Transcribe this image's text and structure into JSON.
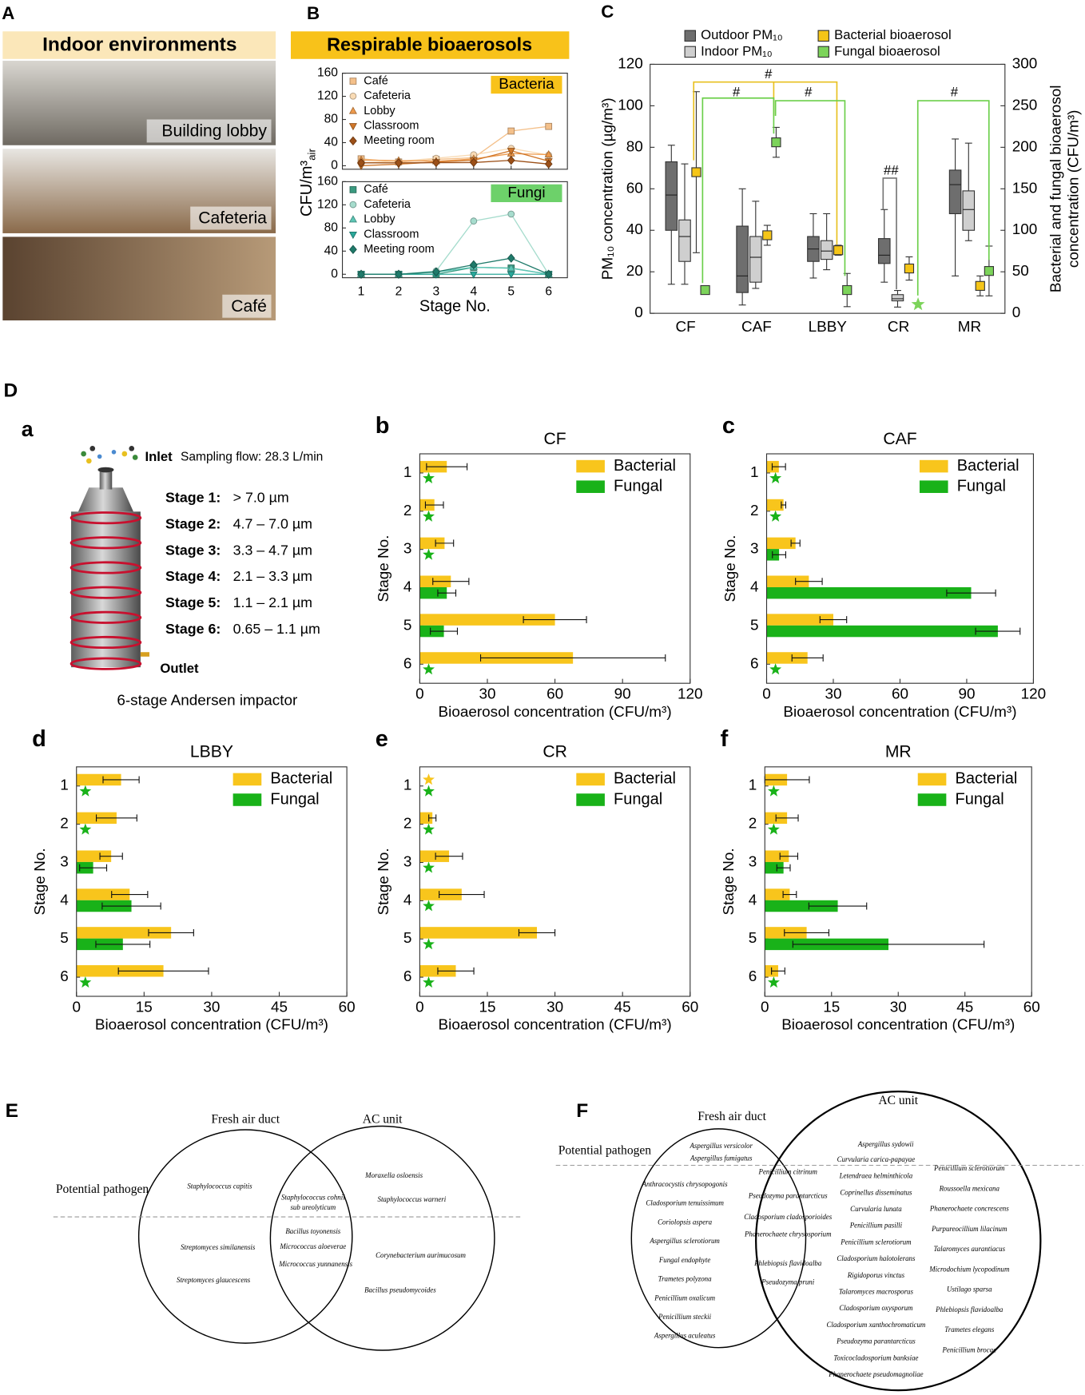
{
  "panel_a": {
    "panel": "A",
    "title": "Indoor environments",
    "photos": [
      "Building lobby",
      "Cafeteria",
      "Café"
    ]
  },
  "panel_b": {
    "panel": "B",
    "title": "Respirable bioaerosols"
  },
  "chart_data": [
    {
      "type": "line",
      "tag": "Bacteria",
      "tag_color": "#f8c21a",
      "ylabel": "CFU/m³",
      "ylabel_sub": "air",
      "x": [
        1,
        2,
        3,
        4,
        5,
        6
      ],
      "xlim": [
        0.5,
        6.5
      ],
      "xticks": [
        1,
        2,
        3,
        4,
        5,
        6
      ],
      "ylim": [
        -6,
        160
      ],
      "yticks": [
        0,
        40,
        80,
        120,
        160
      ],
      "series": [
        {
          "name": "Café",
          "color": "#f4c08a",
          "marker": "square",
          "values": [
            12,
            6.5,
            11,
            13.8,
            60,
            68
          ]
        },
        {
          "name": "Cafeteria",
          "color": "#f9dbb5",
          "marker": "circle",
          "values": [
            5.5,
            7.6,
            13,
            19,
            30,
            18.4
          ]
        },
        {
          "name": "Lobby",
          "color": "#ee9a4c",
          "marker": "triangle-up",
          "values": [
            9.9,
            8.9,
            7.7,
            11.8,
            21,
            19.3
          ]
        },
        {
          "name": "Classroom",
          "color": "#d0772a",
          "marker": "triangle-down",
          "values": [
            0,
            2.8,
            6.5,
            9.3,
            26,
            8
          ]
        },
        {
          "name": "Meeting room",
          "color": "#9c5018",
          "marker": "diamond",
          "values": [
            5,
            5,
            5.4,
            5.6,
            9.4,
            3
          ]
        }
      ]
    },
    {
      "type": "line",
      "tag": "Fungi",
      "tag_color": "#6dd16a",
      "xlabel": "Stage No.",
      "x": [
        1,
        2,
        3,
        4,
        5,
        6
      ],
      "xlim": [
        0.5,
        6.5
      ],
      "xticks": [
        1,
        2,
        3,
        4,
        5,
        6
      ],
      "ylim": [
        -6,
        160
      ],
      "yticks": [
        0,
        40,
        80,
        120,
        160
      ],
      "series": [
        {
          "name": "Café",
          "color": "#3a9a80",
          "marker": "square",
          "values": [
            0,
            0,
            0,
            12,
            10.7,
            0
          ]
        },
        {
          "name": "Cafeteria",
          "color": "#a6dccd",
          "marker": "circle",
          "values": [
            0,
            0,
            5.6,
            92,
            104,
            0
          ]
        },
        {
          "name": "Lobby",
          "color": "#5cc6b5",
          "marker": "triangle-up",
          "values": [
            0,
            0,
            3.7,
            12.2,
            10.3,
            0
          ]
        },
        {
          "name": "Classroom",
          "color": "#2aa89a",
          "marker": "triangle-down",
          "values": [
            0,
            0,
            0,
            0,
            0,
            0
          ]
        },
        {
          "name": "Meeting room",
          "color": "#1f7a6a",
          "marker": "diamond",
          "values": [
            0,
            0,
            4.2,
            16.4,
            27.8,
            0
          ]
        }
      ]
    },
    {
      "type": "box",
      "panel": "C",
      "categories": [
        "CF",
        "CAF",
        "LBBY",
        "CR",
        "MR"
      ],
      "ylabel": "PM₁₀ concentration (µg/m³)",
      "y2label": [
        "Bacterial and fungal bioaerosol",
        "concentration (CFU/m³)"
      ],
      "ylim": [
        0,
        120
      ],
      "yticks": [
        0,
        20,
        40,
        60,
        80,
        100,
        120
      ],
      "y2lim": [
        0,
        300
      ],
      "y2ticks": [
        0,
        50,
        100,
        150,
        200,
        250,
        300
      ],
      "series": [
        {
          "name": "Outdoor PM₁₀",
          "color": "#6e6e6e",
          "boxes": [
            {
              "min": 14,
              "q1": 40,
              "median": 57,
              "q3": 73,
              "max": 81
            },
            {
              "min": 4,
              "q1": 10,
              "median": 18,
              "q3": 42,
              "max": 60
            },
            {
              "min": 17,
              "q1": 25,
              "median": 31,
              "q3": 37,
              "max": 48
            },
            {
              "min": 15,
              "q1": 24,
              "median": 28,
              "q3": 36,
              "max": 50
            },
            {
              "min": 18,
              "q1": 48,
              "median": 62,
              "q3": 69,
              "max": 84
            }
          ]
        },
        {
          "name": "Indoor PM₁₀",
          "color": "#cfcfcf",
          "boxes": [
            {
              "min": 14,
              "q1": 25,
              "median": 37,
              "q3": 45,
              "max": 72
            },
            {
              "min": 12,
              "q1": 15,
              "median": 27,
              "q3": 37,
              "max": 54
            },
            {
              "min": 21,
              "q1": 26,
              "median": 30,
              "q3": 35,
              "max": 48
            },
            {
              "min": 3,
              "q1": 6,
              "median": 7,
              "q3": 9,
              "max": 11
            },
            {
              "min": 35,
              "q1": 40,
              "median": 50,
              "q3": 59,
              "max": 82
            }
          ]
        },
        {
          "name": "Bacterial bioaerosol",
          "color": "#f5c518",
          "axis": "y2",
          "values": [
            170,
            94,
            76,
            54,
            33
          ],
          "errors": [
            97,
            12,
            6,
            14,
            12
          ]
        },
        {
          "name": "Fungal bioaerosol",
          "color": "#7cd35a",
          "axis": "y2",
          "values": [
            28,
            206,
            28,
            0,
            51
          ],
          "errors": [
            5,
            18,
            20,
            null,
            30
          ]
        }
      ],
      "annotations": [
        "#",
        "#",
        "#",
        "##",
        "#"
      ]
    },
    {
      "type": "hbar",
      "panel": "b",
      "title": "CF",
      "categories": [
        1,
        2,
        3,
        4,
        5,
        6
      ],
      "ylabel": "Stage No.",
      "xlabel": "Bioaerosol concentration (CFU/m³)",
      "xlim": [
        0,
        120
      ],
      "xticks": [
        0,
        30,
        60,
        90,
        120
      ],
      "series": [
        {
          "name": "Bacterial",
          "color": "#f8c51c",
          "values": [
            12,
            6.5,
            11,
            13.8,
            60,
            68
          ],
          "errors": [
            9,
            4,
            4,
            8,
            14,
            41
          ]
        },
        {
          "name": "Fungal",
          "color": "#19b219",
          "values": [
            0,
            0,
            0,
            12,
            10.7,
            0
          ],
          "errors": [
            null,
            null,
            null,
            4,
            6,
            null
          ]
        }
      ]
    },
    {
      "type": "hbar",
      "panel": "c",
      "title": "CAF",
      "categories": [
        1,
        2,
        3,
        4,
        5,
        6
      ],
      "ylabel": "Stage No.",
      "xlabel": "Bioaerosol concentration (CFU/m³)",
      "xlim": [
        0,
        120
      ],
      "xticks": [
        0,
        30,
        60,
        90,
        120
      ],
      "series": [
        {
          "name": "Bacterial",
          "color": "#f8c51c",
          "values": [
            5.5,
            7.6,
            13,
            19,
            30,
            18.4
          ],
          "errors": [
            3,
            1,
            2,
            6,
            6,
            7
          ]
        },
        {
          "name": "Fungal",
          "color": "#19b219",
          "values": [
            0,
            0,
            5.6,
            92,
            104,
            0
          ],
          "errors": [
            null,
            null,
            3,
            11,
            10,
            null
          ]
        }
      ]
    },
    {
      "type": "hbar",
      "panel": "d",
      "title": "LBBY",
      "categories": [
        1,
        2,
        3,
        4,
        5,
        6
      ],
      "ylabel": "Stage No.",
      "xlabel": "Bioaerosol concentration (CFU/m³)",
      "xlim": [
        0,
        60
      ],
      "xticks": [
        0,
        15,
        30,
        45,
        60
      ],
      "series": [
        {
          "name": "Bacterial",
          "color": "#f8c51c",
          "values": [
            9.9,
            8.9,
            7.7,
            11.8,
            21,
            19.3
          ],
          "errors": [
            4,
            4.5,
            2.5,
            4,
            5,
            10
          ]
        },
        {
          "name": "Fungal",
          "color": "#19b219",
          "values": [
            0,
            0,
            3.7,
            12.2,
            10.3,
            0
          ],
          "errors": [
            null,
            null,
            3,
            6.5,
            6,
            null
          ]
        }
      ]
    },
    {
      "type": "hbar",
      "panel": "e",
      "title": "CR",
      "categories": [
        1,
        2,
        3,
        4,
        5,
        6
      ],
      "ylabel": "Stage No.",
      "xlabel": "Bioaerosol concentration (CFU/m³)",
      "xlim": [
        0,
        60
      ],
      "xticks": [
        0,
        15,
        30,
        45,
        60
      ],
      "series": [
        {
          "name": "Bacterial",
          "color": "#f8c51c",
          "values": [
            0,
            2.8,
            6.5,
            9.3,
            26,
            8
          ],
          "errors": [
            null,
            0.8,
            3,
            5,
            4,
            4
          ]
        },
        {
          "name": "Fungal",
          "color": "#19b219",
          "values": [
            0,
            0,
            0,
            0,
            0,
            0
          ],
          "errors": [
            null,
            null,
            null,
            null,
            null,
            null
          ]
        }
      ]
    },
    {
      "type": "hbar",
      "panel": "f",
      "title": "MR",
      "categories": [
        1,
        2,
        3,
        4,
        5,
        6
      ],
      "ylabel": "Stage No.",
      "xlabel": "Bioaerosol concentration (CFU/m³)",
      "xlim": [
        0,
        60
      ],
      "xticks": [
        0,
        15,
        30,
        45,
        60
      ],
      "series": [
        {
          "name": "Bacterial",
          "color": "#f8c51c",
          "values": [
            5,
            5,
            5.4,
            5.6,
            9.4,
            3
          ],
          "errors": [
            5,
            2.5,
            2,
            1.5,
            5,
            1.5
          ]
        },
        {
          "name": "Fungal",
          "color": "#19b219",
          "values": [
            0,
            0,
            4.2,
            16.4,
            27.8,
            0
          ],
          "errors": [
            null,
            null,
            1.5,
            6.5,
            21.5,
            null
          ]
        }
      ]
    }
  ],
  "panel_d": {
    "panel": "D",
    "sub": "a",
    "inlet": "Inlet",
    "flow": "Sampling flow: 28.3 L/min",
    "stages": [
      {
        "name": "Stage 1:",
        "range": "> 7.0 µm"
      },
      {
        "name": "Stage 2:",
        "range": "4.7 – 7.0 µm"
      },
      {
        "name": "Stage 3:",
        "range": "3.3 – 4.7 µm"
      },
      {
        "name": "Stage 4:",
        "range": "2.1 – 3.3 µm"
      },
      {
        "name": "Stage 5:",
        "range": "1.1 – 2.1 µm"
      },
      {
        "name": "Stage 6:",
        "range": "0.65 – 1.1 µm"
      }
    ],
    "outlet": "Outlet",
    "caption": "6-stage Andersen impactor"
  },
  "venn_e": {
    "panel": "E",
    "left_label": "Fresh air duct",
    "right_label": "AC unit",
    "pathogen_label": "Potential pathogen",
    "left_pathogens": [
      "Staphylococcus capitis"
    ],
    "overlap_pathogens": [
      "Staphylococcus cohnii",
      "sub ureolyticum"
    ],
    "right_pathogens": [
      "Moraxella osloensis",
      "Staphylococcus warneri"
    ],
    "left_others": [
      "Streptomyces similanensis",
      "Streptomyces glaucescens"
    ],
    "overlap_others": [
      "Bacillus toyonensis",
      "Micrococcus aloeverae",
      "Micrococcus yunnanensis"
    ],
    "right_others": [
      "Corynebacterium aurimucosum",
      "Bacillus pseudomycoides"
    ]
  },
  "venn_f": {
    "panel": "F",
    "left_label": "Fresh air duct",
    "right_label": "AC unit",
    "pathogen_label": "Potential pathogen",
    "left_pathogens": [
      "Aspergillus versicolor",
      "Aspergillus fumigatus"
    ],
    "overlap_pathogens": [],
    "right_pathogens": [
      "Aspergillus sydowii"
    ],
    "left_others": [
      "Anthracocystis chrysopogonis",
      "Cladosporium tenuissimum",
      "Coriolopsis aspera",
      "Aspergillus sclerotiorum",
      "Fungal endophyte",
      "Trametes polyzona",
      "Penicillium oxalicum",
      "Penicillium steckii",
      "Aspergillus aculeatus"
    ],
    "overlap_others": [
      "Penicillium citrinum",
      "Pseudozyma parantarcticus",
      "Cladosporium cladosporioides",
      "Phanerochaete chrysosporium",
      "Phlebiopsis flavidoalba",
      "Pseudozyma pruni"
    ],
    "right_others": [
      "Curvularia carica-papayae",
      "Letendraea helminthicola",
      "Coprinellus disseminatus",
      "Curvularia lunata",
      "Penicillium pasilli",
      "Penicillium sclerotiorum",
      "Cladosporium halotolerans",
      "Rigidoporus vinctus",
      "Talaromyces macrosporus",
      "Cladosporium oxysporum",
      "Cladosporium xanthochromaticum",
      "Pseudozyma parantarcticus",
      "Toxicocladosporium banksiae",
      "Phanerochaete pseudomagnoliae",
      "Penicillium sclerotiorum",
      "Roussoella mexicana",
      "Phanerochaete concrescens",
      "Purpureocillium lilacinum",
      "Talaromyces aurantiacus",
      "Microdochium lycopodinum",
      "Ustilago sparsa",
      "Phlebiopsis flavidoalba",
      "Trametes elegans",
      "Penicillium brocae"
    ]
  }
}
